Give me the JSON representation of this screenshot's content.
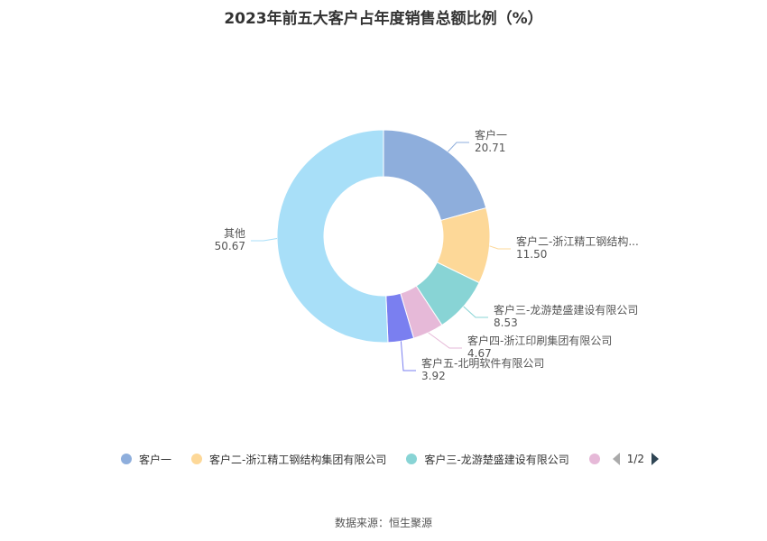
{
  "title": "2023年前五大客户占年度销售总额比例（%）",
  "chart_data": {
    "type": "pie",
    "donut": true,
    "slices": [
      {
        "name": "客户一",
        "label": "客户一",
        "value": 20.71,
        "value_text": "20.71",
        "color": "#8eaedc"
      },
      {
        "name": "客户二-浙江精工钢结构集团有限公司",
        "label": "客户二-浙江精工钢结构...",
        "value": 11.5,
        "value_text": "11.50",
        "color": "#fdd898"
      },
      {
        "name": "客户三-龙游楚盛建设有限公司",
        "label": "客户三-龙游楚盛建设有限公司",
        "value": 8.53,
        "value_text": "8.53",
        "color": "#88d4d5"
      },
      {
        "name": "客户四-浙江印刷集团有限公司",
        "label": "客户四-浙江印刷集团有限公司",
        "value": 4.67,
        "value_text": "4.67",
        "color": "#e6b9d8"
      },
      {
        "name": "客户五-北明软件有限公司",
        "label": "客户五-北明软件有限公司",
        "value": 3.92,
        "value_text": "3.92",
        "color": "#7a7ff0"
      },
      {
        "name": "其他",
        "label": "其他",
        "value": 50.67,
        "value_text": "50.67",
        "color": "#a8dff8"
      }
    ]
  },
  "legend": {
    "items": [
      {
        "label": "客户一",
        "color": "#8eaedc"
      },
      {
        "label": "客户二-浙江精工钢结构集团有限公司",
        "color": "#fdd898"
      },
      {
        "label": "客户三-龙游楚盛建设有限公司",
        "color": "#88d4d5"
      },
      {
        "label": "",
        "color": "#e6b9d8"
      }
    ],
    "page": "1/2"
  },
  "source": "数据来源：恒生聚源"
}
